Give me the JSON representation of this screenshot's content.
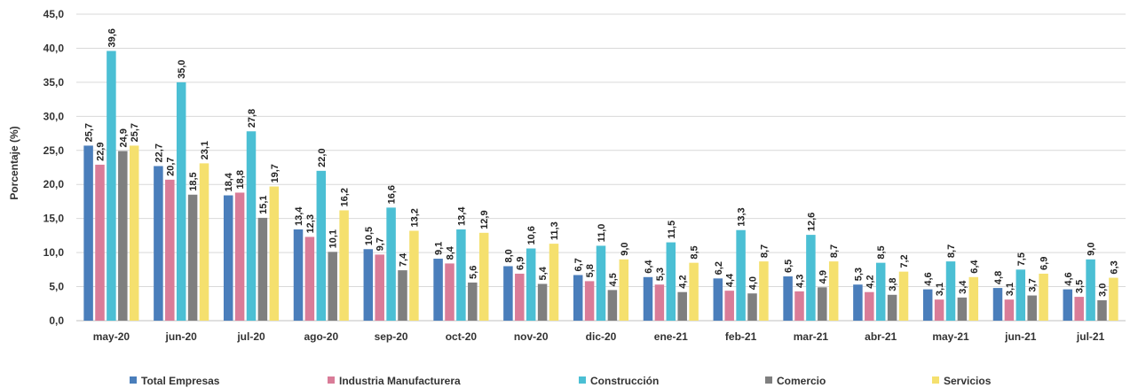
{
  "chart_data": {
    "type": "bar",
    "title": "",
    "xlabel": "",
    "ylabel": "Porcentaje (%)",
    "ylim": [
      0,
      45
    ],
    "yticks": [
      "0,0",
      "5,0",
      "10,0",
      "15,0",
      "20,0",
      "25,0",
      "30,0",
      "35,0",
      "40,0",
      "45,0"
    ],
    "grid": true,
    "legend_position": "bottom",
    "categories": [
      "may-20",
      "jun-20",
      "jul-20",
      "ago-20",
      "sep-20",
      "oct-20",
      "nov-20",
      "dic-20",
      "ene-21",
      "feb-21",
      "mar-21",
      "abr-21",
      "may-21",
      "jun-21",
      "jul-21"
    ],
    "series": [
      {
        "name": "Total Empresas",
        "color": "#4a7ebb",
        "values": [
          25.7,
          22.7,
          18.4,
          13.4,
          10.5,
          9.1,
          8.0,
          6.7,
          6.4,
          6.2,
          6.5,
          5.3,
          4.6,
          4.8,
          4.6
        ]
      },
      {
        "name": "Industria Manufacturera",
        "color": "#d97c98",
        "values": [
          22.9,
          20.7,
          18.8,
          12.3,
          9.7,
          8.4,
          6.9,
          5.8,
          5.3,
          4.4,
          4.3,
          4.2,
          3.1,
          3.1,
          3.5
        ]
      },
      {
        "name": "Construcción",
        "color": "#4bbfd4",
        "values": [
          39.6,
          35.0,
          27.8,
          22.0,
          16.6,
          13.4,
          10.6,
          11.0,
          11.5,
          13.3,
          12.6,
          8.5,
          8.7,
          7.5,
          9.0
        ]
      },
      {
        "name": "Comercio",
        "color": "#7f7f7f",
        "values": [
          24.9,
          18.5,
          15.1,
          10.1,
          7.4,
          5.6,
          5.4,
          4.5,
          4.2,
          4.0,
          4.9,
          3.8,
          3.4,
          3.7,
          3.0
        ]
      },
      {
        "name": "Servicios",
        "color": "#f5e06e",
        "values": [
          25.7,
          23.1,
          19.7,
          16.2,
          13.2,
          12.9,
          11.3,
          9.0,
          8.5,
          8.7,
          8.7,
          7.2,
          6.4,
          6.9,
          6.3
        ]
      }
    ]
  }
}
